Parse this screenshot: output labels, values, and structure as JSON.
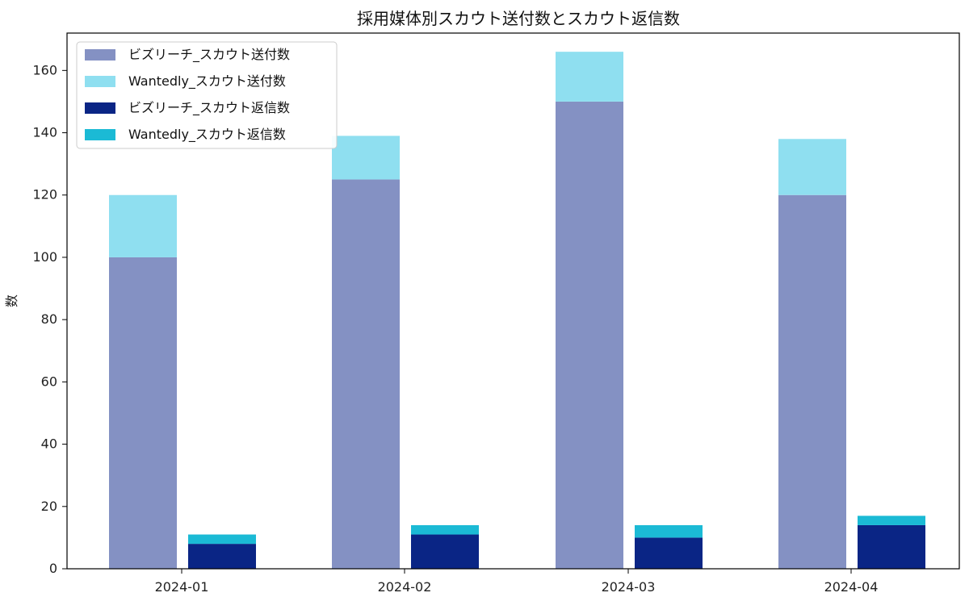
{
  "chart_data": {
    "type": "bar",
    "title": "採用媒体別スカウト送付数とスカウト返信数",
    "ylabel": "数",
    "xlabel": "",
    "categories": [
      "2024-01",
      "2024-02",
      "2024-03",
      "2024-04"
    ],
    "ylim": [
      0,
      172
    ],
    "y_ticks": [
      0,
      20,
      40,
      60,
      80,
      100,
      120,
      140,
      160
    ],
    "grid": false,
    "legend_position": "top-left",
    "series": [
      {
        "name": "ビズリーチ_スカウト送付数",
        "group": "sent",
        "stack_order": 0,
        "values": [
          100,
          125,
          150,
          120
        ],
        "color": "#8491c3"
      },
      {
        "name": "Wantedly_スカウト送付数",
        "group": "sent",
        "stack_order": 1,
        "values": [
          20,
          14,
          16,
          18
        ],
        "color": "#8fdff0"
      },
      {
        "name": "ビズリーチ_スカウト返信数",
        "group": "reply",
        "stack_order": 0,
        "values": [
          8,
          11,
          10,
          14
        ],
        "color": "#0a2585"
      },
      {
        "name": "Wantedly_スカウト返信数",
        "group": "reply",
        "stack_order": 1,
        "values": [
          3,
          3,
          4,
          3
        ],
        "color": "#1bbad5"
      }
    ]
  }
}
